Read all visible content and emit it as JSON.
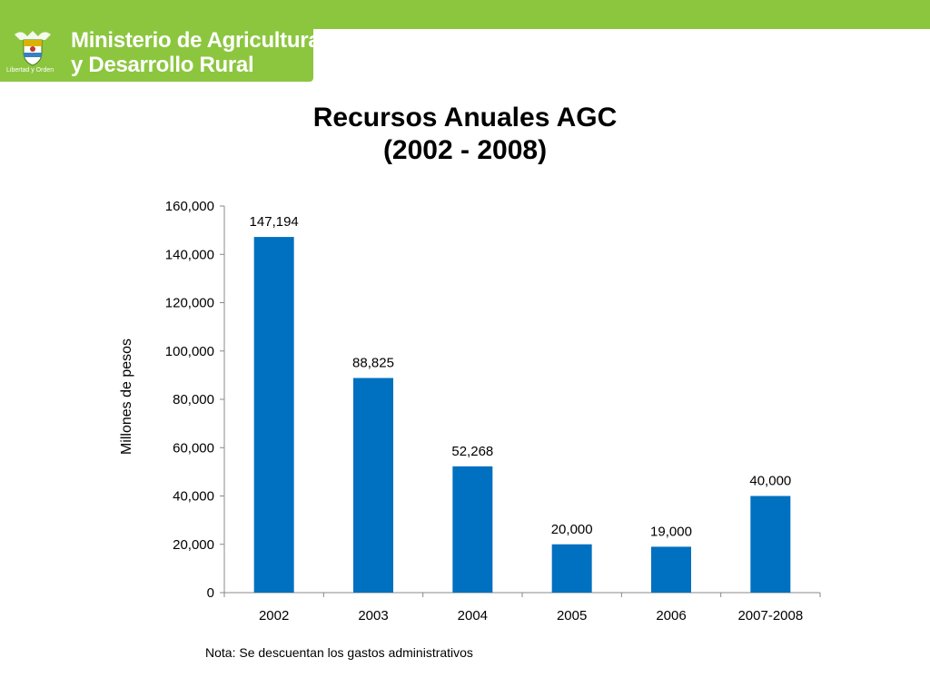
{
  "header": {
    "org_line1": "Ministerio de Agricultura",
    "org_line2": "y Desarrollo Rural",
    "motto": "Libertad y Orden",
    "bar_color": "#8cc63f"
  },
  "chart_data": {
    "type": "bar",
    "title": "Recursos Anuales AGC",
    "subtitle": "(2002 - 2008)",
    "ylabel": "Millones de pesos",
    "xlabel": "",
    "categories": [
      "2002",
      "2003",
      "2004",
      "2005",
      "2006",
      "2007-2008"
    ],
    "values": [
      147194,
      88825,
      52268,
      20000,
      19000,
      40000
    ],
    "value_labels": [
      "147,194",
      "88,825",
      "52,268",
      "20,000",
      "19,000",
      "40,000"
    ],
    "ylim": [
      0,
      160000
    ],
    "yticks": [
      0,
      20000,
      40000,
      60000,
      80000,
      100000,
      120000,
      140000,
      160000
    ],
    "ytick_labels": [
      "0",
      "20,000",
      "40,000",
      "60,000",
      "80,000",
      "100,000",
      "120,000",
      "140,000",
      "160,000"
    ],
    "bar_color": "#0070c0",
    "grid": false,
    "legend": "none"
  },
  "note": "Nota: Se descuentan los gastos administrativos"
}
